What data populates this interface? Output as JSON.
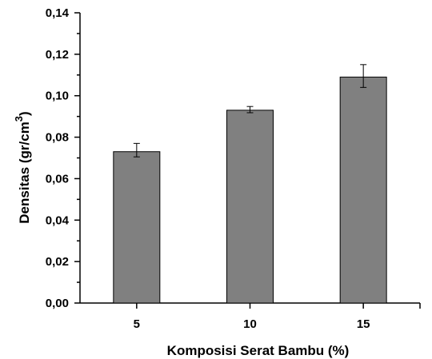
{
  "chart_data": {
    "type": "bar",
    "xlabel": "Komposisi Serat Bambu (%)",
    "ylabel_main": "Densitas  (gr/cm",
    "ylabel_sup": "3",
    "ylabel_close": ")",
    "categories": [
      "5",
      "10",
      "15"
    ],
    "values": [
      0.073,
      0.093,
      0.109
    ],
    "error_low": [
      0.0705,
      0.0918,
      0.104
    ],
    "error_high": [
      0.077,
      0.0948,
      0.115
    ],
    "ylim": [
      0,
      0.14
    ],
    "yticks": [
      0.0,
      0.02,
      0.04,
      0.06,
      0.08,
      0.1,
      0.12,
      0.14
    ],
    "ytick_labels": [
      "0,00",
      "0,02",
      "0,04",
      "0,06",
      "0,08",
      "0,10",
      "0,12",
      "0,14"
    ],
    "grid": false,
    "legend": "none",
    "colors": {
      "bar_fill": "#808080",
      "bar_stroke": "#000000",
      "axis": "#000000"
    }
  }
}
